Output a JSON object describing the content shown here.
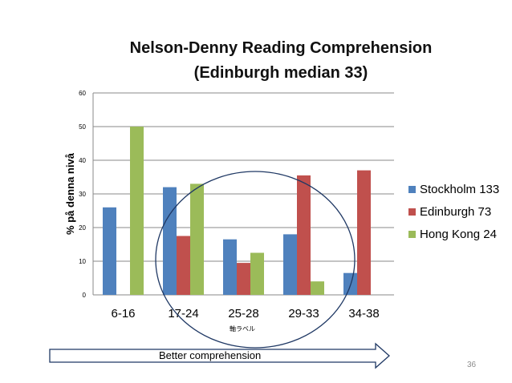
{
  "title_line1": "Nelson-Denny Reading Comprehension",
  "title_line2": "(Edinburgh median 33)",
  "slide_number": "36",
  "arrow_label": "Better comprehension",
  "chart_data": {
    "type": "bar",
    "categories": [
      "6-16",
      "17-24",
      "25-28",
      "29-33",
      "34-38"
    ],
    "series": [
      {
        "name": "Stockholm 133",
        "color": "#4f81bd",
        "values": [
          26,
          32,
          16.5,
          18,
          6.5
        ]
      },
      {
        "name": "Edinburgh 73",
        "color": "#c0504d",
        "values": [
          0,
          17.5,
          9.5,
          35.5,
          37
        ]
      },
      {
        "name": "Hong Kong 24",
        "color": "#9bbb59",
        "values": [
          50,
          33,
          12.5,
          4,
          0
        ]
      }
    ],
    "ylabel": "% på denna nivå",
    "xlabel": "軸ラベル",
    "ylim": [
      0,
      60
    ],
    "yticks": [
      0,
      10,
      20,
      30,
      40,
      50,
      60
    ],
    "grid": true,
    "legend_position": "right",
    "annotation": "ellipse around 17-24 to 29-33"
  }
}
